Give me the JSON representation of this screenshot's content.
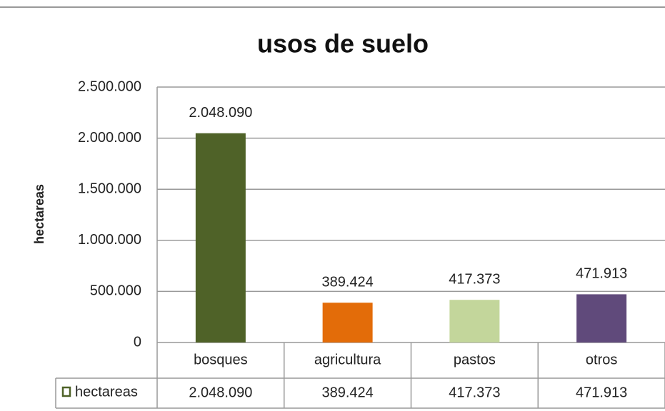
{
  "chart_data": {
    "type": "bar",
    "title": "usos de suelo",
    "y_label": "hectareas",
    "categories": [
      "bosques",
      "agricultura",
      "pastos",
      "otros"
    ],
    "series": [
      {
        "name": "hectareas",
        "colors": [
          "#4f6228",
          "#e36c09",
          "#c3d69b",
          "#604a7b"
        ],
        "values": [
          2048090,
          389424,
          417373,
          471913
        ],
        "value_labels": [
          "2.048.090",
          "389.424",
          "417.373",
          "471.913"
        ]
      }
    ],
    "ylim": [
      0,
      2500000
    ],
    "yticks": [
      0,
      {
        "value": 500000,
        "label": "500.000"
      },
      {
        "value": 1000000,
        "label": "1.000.000"
      },
      {
        "value": 1500000,
        "label": "1.500.000"
      },
      {
        "value": 2000000,
        "label": "2.000.000"
      },
      {
        "value": 2500000,
        "label": "2.500.000"
      }
    ],
    "grid": true,
    "data_table": true
  }
}
